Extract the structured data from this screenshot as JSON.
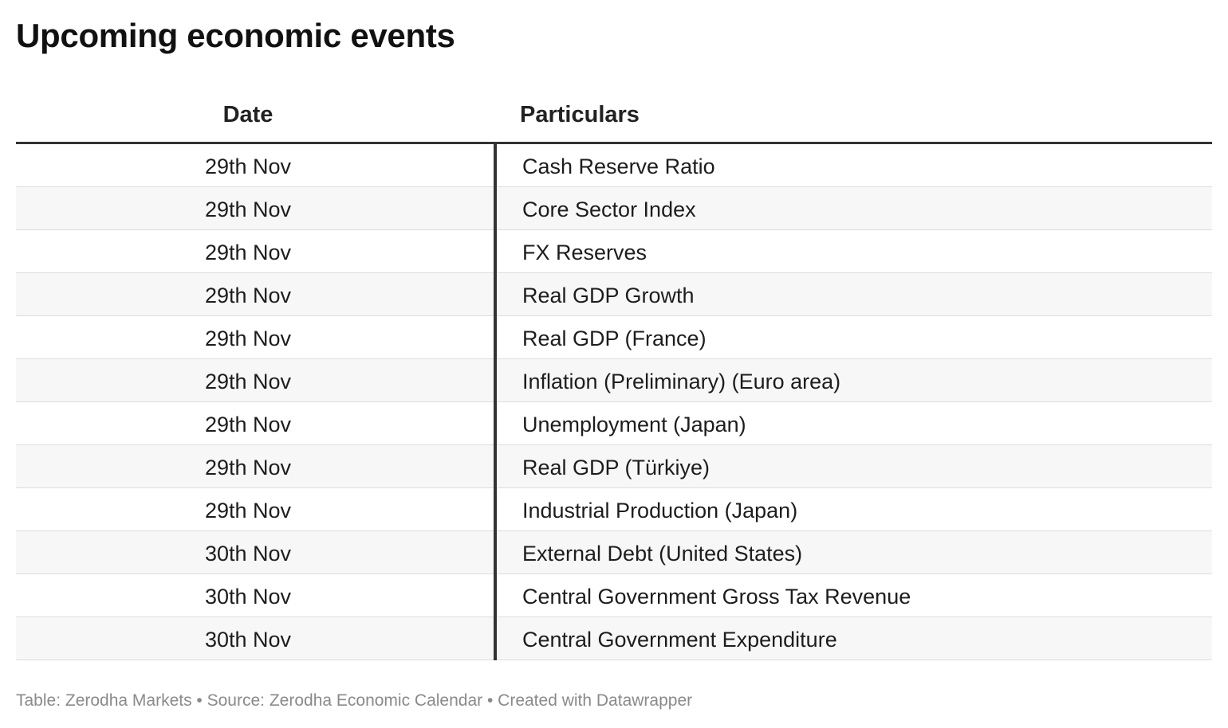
{
  "title": "Upcoming economic events",
  "chart_data": {
    "type": "table",
    "title": "Upcoming economic events",
    "columns": [
      "Date",
      "Particulars"
    ],
    "rows": [
      [
        "29th Nov",
        "Cash Reserve Ratio"
      ],
      [
        "29th Nov",
        "Core Sector Index"
      ],
      [
        "29th Nov",
        "FX Reserves"
      ],
      [
        "29th Nov",
        "Real GDP Growth"
      ],
      [
        "29th Nov",
        "Real GDP (France)"
      ],
      [
        "29th Nov",
        "Inflation (Preliminary) (Euro area)"
      ],
      [
        "29th Nov",
        "Unemployment (Japan)"
      ],
      [
        "29th Nov",
        "Real GDP (Türkiye)"
      ],
      [
        "29th Nov",
        "Industrial Production (Japan)"
      ],
      [
        "30th Nov",
        "External Debt (United States)"
      ],
      [
        "30th Nov",
        "Central Government Gross Tax Revenue"
      ],
      [
        "30th Nov",
        "Central Government Expenditure"
      ]
    ]
  },
  "footer": {
    "text": "Table: Zerodha Markets • Source: Zerodha Economic Calendar • Created with Datawrapper"
  },
  "colors": {
    "header_rule": "#333333",
    "row_alt": "#f7f7f7",
    "row_border": "#dddddd",
    "footer_text": "#8a8a8a"
  }
}
